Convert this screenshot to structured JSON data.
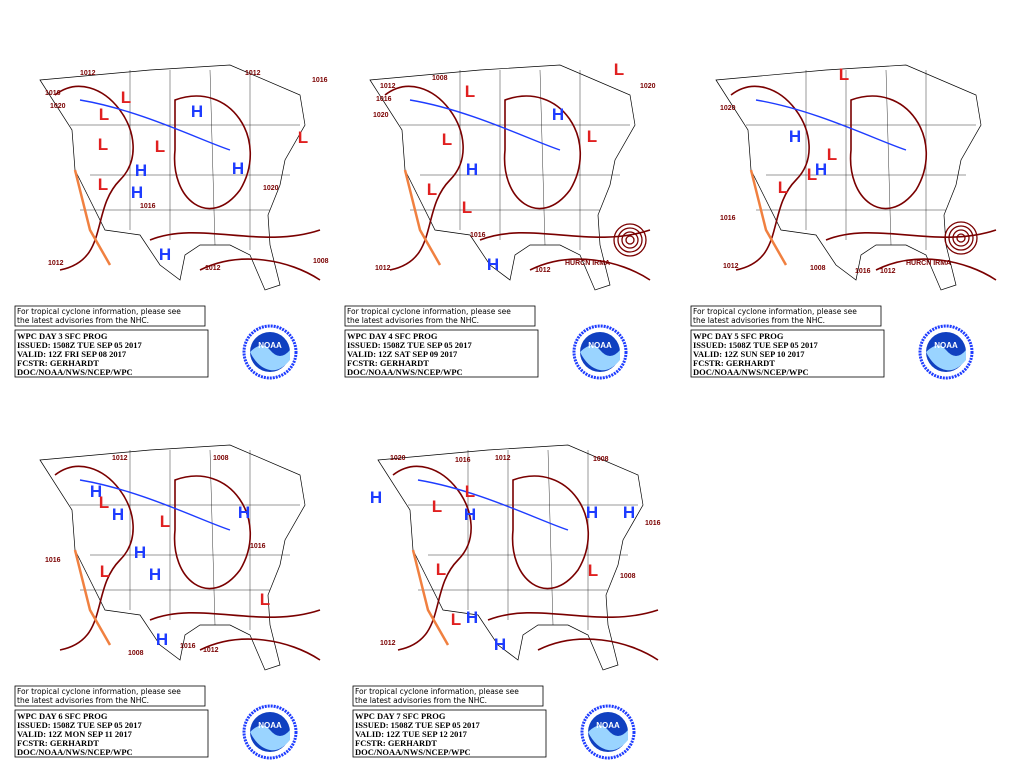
{
  "panels": [
    {
      "notice": [
        "For tropical cyclone information, please see",
        "the latest advisories from the NHC."
      ],
      "info": [
        "WPC DAY 3 SFC PROG",
        "ISSUED: 1508Z TUE SEP 05 2017",
        "VALID: 12Z FRI SEP 08 2017",
        "FCSTR: GERHARDT",
        "DOC/NOAA/NWS/NCEP/WPC"
      ],
      "logo": "NOAA",
      "centers": [
        "H",
        "L",
        "L",
        "L",
        "H",
        "H",
        "L",
        "H",
        "L",
        "H",
        "L"
      ],
      "isobars": [
        "1012",
        "1016",
        "1020",
        "1016",
        "1012",
        "1020",
        "1012",
        "1012",
        "1008",
        "1016"
      ]
    },
    {
      "notice": [
        "For tropical cyclone information, please see",
        "the latest advisories from the NHC."
      ],
      "info": [
        "WPC DAY 4 SFC PROG",
        "ISSUED: 1508Z TUE SEP 05 2017",
        "VALID: 12Z SAT SEP 09 2017",
        "FCSTR: GERHARDT",
        "DOC/NOAA/NWS/NCEP/WPC"
      ],
      "logo": "NOAA",
      "centers": [
        "H",
        "L",
        "L",
        "H",
        "L",
        "L",
        "H",
        "L",
        "L"
      ],
      "isobars": [
        "1008",
        "1012",
        "1016",
        "1020",
        "1012",
        "1012",
        "1016",
        "1020"
      ],
      "storm": "HURCN IRMA"
    },
    {
      "notice": [
        "For tropical cyclone information, please see",
        "the latest advisories from the NHC."
      ],
      "info": [
        "WPC DAY 5 SFC PROG",
        "ISSUED: 1508Z TUE SEP 05 2017",
        "VALID: 12Z SUN SEP 10 2017",
        "FCSTR: GERHARDT",
        "DOC/NOAA/NWS/NCEP/WPC"
      ],
      "logo": "NOAA",
      "centers": [
        "H",
        "L",
        "H",
        "L",
        "L",
        "L"
      ],
      "isobars": [
        "1020",
        "1016",
        "1012",
        "1016",
        "1012",
        "1008"
      ],
      "storm": "HURCN IRMA"
    },
    {
      "notice": [
        "For tropical cyclone information, please see",
        "the latest advisories from the NHC."
      ],
      "info": [
        "WPC DAY 6 SFC PROG",
        "ISSUED: 1508Z TUE SEP 05 2017",
        "VALID: 12Z MON SEP 11 2017",
        "FCSTR: GERHARDT",
        "DOC/NOAA/NWS/NCEP/WPC"
      ],
      "logo": "NOAA",
      "centers": [
        "H",
        "L",
        "H",
        "L",
        "H",
        "H",
        "L",
        "H",
        "H",
        "L"
      ],
      "isobars": [
        "1012",
        "1008",
        "1016",
        "1016",
        "1008",
        "1012",
        "1016"
      ]
    },
    {
      "notice": [
        "For tropical cyclone information, please see",
        "the latest advisories from the NHC."
      ],
      "info": [
        "WPC DAY 7 SFC PROG",
        "ISSUED: 1508Z TUE SEP 05 2017",
        "VALID: 12Z TUE SEP 12 2017",
        "FCSTR: GERHARDT",
        "DOC/NOAA/NWS/NCEP/WPC"
      ],
      "logo": "NOAA",
      "centers": [
        "H",
        "L",
        "L",
        "H",
        "H",
        "H",
        "L",
        "L",
        "L",
        "H",
        "H"
      ],
      "isobars": [
        "1020",
        "1016",
        "1012",
        "1008",
        "1016",
        "1012",
        "1008"
      ]
    }
  ]
}
